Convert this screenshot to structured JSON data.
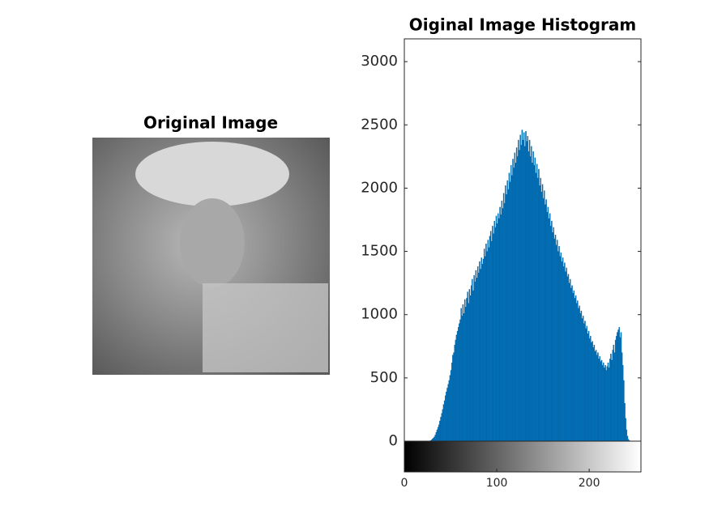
{
  "chart_data": [
    {
      "type": "image",
      "title": "Original Image"
    },
    {
      "type": "histogram",
      "title": "Oiginal Image Histogram",
      "color": "#0072bd",
      "xlim": [
        0,
        256
      ],
      "ylim": [
        0,
        3180
      ],
      "xticks": [
        0,
        100,
        200
      ],
      "yticks": [
        0,
        500,
        1000,
        1500,
        2000,
        2500,
        3000
      ],
      "bins": [
        0,
        1,
        2,
        3,
        4,
        5,
        6,
        7,
        8,
        9,
        10,
        11,
        12,
        13,
        14,
        15,
        16,
        17,
        18,
        19,
        20,
        21,
        22,
        23,
        24,
        25,
        26,
        27,
        28,
        29,
        30,
        31,
        32,
        33,
        34,
        35,
        36,
        37,
        38,
        39,
        40,
        41,
        42,
        43,
        44,
        45,
        46,
        47,
        48,
        49,
        50,
        51,
        52,
        53,
        54,
        55,
        56,
        57,
        58,
        59,
        60,
        61,
        62,
        63,
        64,
        65,
        66,
        67,
        68,
        69,
        70,
        71,
        72,
        73,
        74,
        75,
        76,
        77,
        78,
        79,
        80,
        81,
        82,
        83,
        84,
        85,
        86,
        87,
        88,
        89,
        90,
        91,
        92,
        93,
        94,
        95,
        96,
        97,
        98,
        99,
        100,
        101,
        102,
        103,
        104,
        105,
        106,
        107,
        108,
        109,
        110,
        111,
        112,
        113,
        114,
        115,
        116,
        117,
        118,
        119,
        120,
        121,
        122,
        123,
        124,
        125,
        126,
        127,
        128,
        129,
        130,
        131,
        132,
        133,
        134,
        135,
        136,
        137,
        138,
        139,
        140,
        141,
        142,
        143,
        144,
        145,
        146,
        147,
        148,
        149,
        150,
        151,
        152,
        153,
        154,
        155,
        156,
        157,
        158,
        159,
        160,
        161,
        162,
        163,
        164,
        165,
        166,
        167,
        168,
        169,
        170,
        171,
        172,
        173,
        174,
        175,
        176,
        177,
        178,
        179,
        180,
        181,
        182,
        183,
        184,
        185,
        186,
        187,
        188,
        189,
        190,
        191,
        192,
        193,
        194,
        195,
        196,
        197,
        198,
        199,
        200,
        201,
        202,
        203,
        204,
        205,
        206,
        207,
        208,
        209,
        210,
        211,
        212,
        213,
        214,
        215,
        216,
        217,
        218,
        219,
        220,
        221,
        222,
        223,
        224,
        225,
        226,
        227,
        228,
        229,
        230,
        231,
        232,
        233,
        234,
        235,
        236,
        237,
        238,
        239,
        240,
        241,
        242,
        243,
        244,
        245,
        246,
        247,
        248,
        249,
        250,
        251,
        252,
        253,
        254,
        255,
        256
      ],
      "values": [
        0,
        0,
        0,
        0,
        0,
        0,
        0,
        0,
        0,
        0,
        0,
        0,
        0,
        0,
        0,
        0,
        0,
        0,
        0,
        0,
        0,
        0,
        0,
        0,
        0,
        0,
        0,
        2,
        5,
        10,
        18,
        25,
        35,
        50,
        70,
        90,
        110,
        130,
        160,
        190,
        220,
        250,
        290,
        320,
        360,
        390,
        420,
        450,
        480,
        520,
        560,
        620,
        680,
        700,
        760,
        800,
        840,
        870,
        900,
        930,
        960,
        1050,
        990,
        1080,
        1010,
        1120,
        1060,
        1130,
        1180,
        1090,
        1200,
        1150,
        1230,
        1280,
        1190,
        1310,
        1260,
        1350,
        1290,
        1380,
        1330,
        1420,
        1360,
        1450,
        1400,
        1440,
        1520,
        1460,
        1560,
        1500,
        1590,
        1530,
        1620,
        1660,
        1580,
        1700,
        1640,
        1740,
        1690,
        1780,
        1720,
        1800,
        1760,
        1850,
        1790,
        1900,
        1840,
        1960,
        1880,
        2020,
        1950,
        2060,
        1990,
        2120,
        2050,
        2180,
        2100,
        2230,
        2160,
        2280,
        2200,
        2320,
        2250,
        2380,
        2300,
        2420,
        2340,
        2460,
        2380,
        2440,
        2330,
        2450,
        2370,
        2410,
        2290,
        2380,
        2250,
        2330,
        2200,
        2290,
        2180,
        2240,
        2120,
        2190,
        2080,
        2150,
        2020,
        2080,
        1970,
        2030,
        1920,
        1980,
        1870,
        1910,
        1810,
        1850,
        1760,
        1800,
        1700,
        1740,
        1650,
        1690,
        1600,
        1630,
        1550,
        1590,
        1500,
        1540,
        1460,
        1490,
        1420,
        1450,
        1380,
        1410,
        1340,
        1370,
        1300,
        1320,
        1250,
        1280,
        1210,
        1230,
        1170,
        1190,
        1130,
        1150,
        1090,
        1110,
        1050,
        1070,
        1010,
        1030,
        970,
        990,
        930,
        950,
        890,
        910,
        850,
        870,
        810,
        830,
        780,
        790,
        740,
        760,
        710,
        720,
        680,
        700,
        650,
        670,
        630,
        640,
        600,
        620,
        580,
        600,
        560,
        590,
        620,
        580,
        650,
        690,
        640,
        720,
        760,
        700,
        800,
        830,
        860,
        880,
        900,
        820,
        860,
        700,
        600,
        480,
        300,
        180,
        90,
        40,
        15,
        5,
        0,
        0,
        0,
        0,
        0,
        0,
        0,
        0,
        0,
        0,
        0,
        0
      ]
    }
  ]
}
